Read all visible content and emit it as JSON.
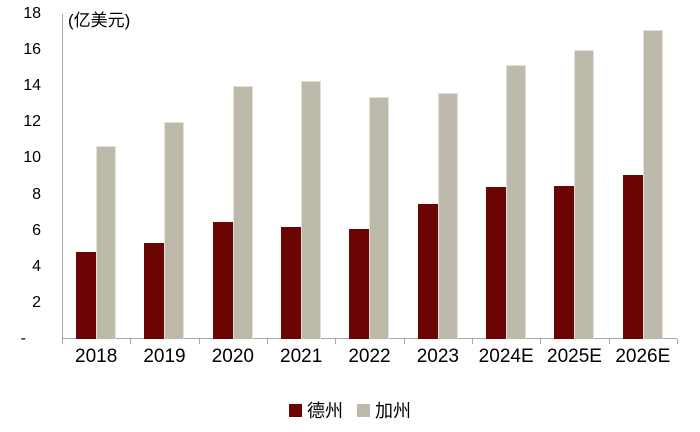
{
  "chart_data": {
    "type": "bar",
    "unit_label": "(亿美元)",
    "categories": [
      "2018",
      "2019",
      "2020",
      "2021",
      "2022",
      "2023",
      "2024E",
      "2025E",
      "2026E"
    ],
    "series": [
      {
        "name": "德州",
        "color": "#6b0504",
        "values": [
          4.8,
          5.3,
          6.5,
          6.2,
          6.1,
          7.5,
          8.4,
          8.5,
          9.1
        ]
      },
      {
        "name": "加州",
        "color": "#bdbaab",
        "values": [
          10.7,
          12.0,
          14.0,
          14.3,
          13.4,
          13.6,
          15.2,
          16.0,
          17.1
        ]
      }
    ],
    "ylim": [
      0,
      18
    ],
    "y_ticks": [
      {
        "value": 18,
        "label": "18"
      },
      {
        "value": 16,
        "label": "16"
      },
      {
        "value": 14,
        "label": "14"
      },
      {
        "value": 12,
        "label": "12"
      },
      {
        "value": 10,
        "label": "10"
      },
      {
        "value": 8,
        "label": "8"
      },
      {
        "value": 6,
        "label": "6"
      },
      {
        "value": 4,
        "label": "4"
      },
      {
        "value": 2,
        "label": "2"
      },
      {
        "value": 0,
        "label": "-"
      }
    ],
    "grid": false,
    "legend_position": "bottom",
    "axis_color": "#a6a6a6"
  }
}
